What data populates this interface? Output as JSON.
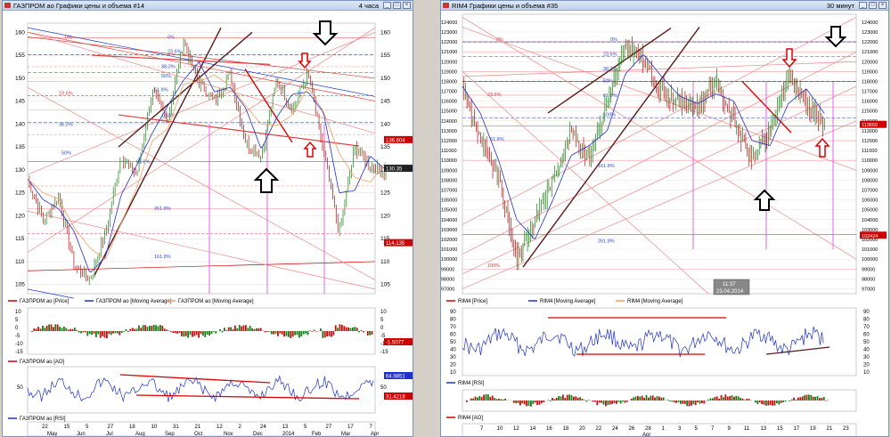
{
  "left": {
    "title": "ГАЗПРОМ ао Графики цены и объема #14",
    "period": "4 часа",
    "price_axis": [
      "160",
      "155",
      "150",
      "145",
      "140",
      "135",
      "130",
      "125",
      "120",
      "115",
      "110",
      "105"
    ],
    "fib": [
      "0%",
      "0%",
      "23.6%",
      "23.6%",
      "38.2%",
      "38.2%",
      "50%",
      "50%",
      "61.8%",
      "61.8%",
      "100%",
      "161.8%",
      "261.8%"
    ],
    "price_tags": [
      "136.604",
      "130.35",
      "114.135"
    ],
    "legend_price": [
      "ГАЗПРОМ ао [Price]",
      "ГАЗПРОМ ао [Moving Average]",
      "ГАЗПРОМ ао [Moving Average]"
    ],
    "ao_axis": [
      "10",
      "5",
      "0",
      "-5",
      "-10",
      "-15"
    ],
    "ao_tag": "-1.5077",
    "legend_ao": "ГАЗПРОМ ао [AO]",
    "rsi_axis": [
      "50"
    ],
    "rsi_tags": [
      "64.9851",
      "31.4218"
    ],
    "legend_rsi": "ГАЗПРОМ ао [RSI]",
    "time_days": [
      "22",
      "15",
      "5",
      "27",
      "18",
      "10",
      "31",
      "21",
      "12",
      "2",
      "24",
      "13",
      "5",
      "27",
      "17",
      "7"
    ],
    "time_months": [
      "May",
      "Jun",
      "Jul",
      "Aug",
      "Sep",
      "Oct",
      "Nov",
      "Dec",
      "2014",
      "Feb",
      "Mar",
      "Apr"
    ]
  },
  "right": {
    "title": "RIM4 Графики цены и объема #35",
    "period": "30 минут",
    "price_axis": [
      "124000",
      "123000",
      "122000",
      "121000",
      "120000",
      "119000",
      "118000",
      "117000",
      "116000",
      "115000",
      "114000",
      "113000",
      "112000",
      "111000",
      "110000",
      "109000",
      "108000",
      "107000",
      "106000",
      "105000",
      "104000",
      "103000",
      "102000",
      "101000",
      "100000",
      "99000",
      "98000",
      "97000"
    ],
    "fib": [
      "0%",
      "0%",
      "23.6%",
      "23.6%",
      "38.2%",
      "50%",
      "61.8%",
      "61.8%",
      "100%",
      "161.8%",
      "261.8%",
      "100%"
    ],
    "price_tags": [
      "113650",
      "102424"
    ],
    "cursor_time": "11:37",
    "cursor_date": "23.04.2014",
    "legend_price": [
      "RIM4 [Price]",
      "RIM4 [Moving Average]",
      "RIM4 [Moving Average]"
    ],
    "rsi_axis": [
      "90",
      "80",
      "70",
      "60",
      "50",
      "40",
      "30",
      "20",
      "10"
    ],
    "rsi_axis_right": [
      "90",
      "80",
      "70",
      "60",
      "50",
      "40",
      "30",
      "20",
      "10"
    ],
    "legend_rsi": "RIM4 [RSI]",
    "legend_ao": "RIM4 [AO]",
    "time_days": [
      "7",
      "10",
      "12",
      "14",
      "16",
      "18",
      "20",
      "22",
      "24",
      "26",
      "28",
      "1",
      "3",
      "5",
      "7",
      "9",
      "11",
      "13",
      "15",
      "17",
      "19",
      "21",
      "23"
    ],
    "time_month": "Apr"
  },
  "colors": {
    "price": "#000000",
    "ma_blue": "#2030d0",
    "ma_orange": "#f0a060",
    "fib": "#e04040",
    "up_arrow": "#d00000",
    "trend": "#5a1a1a"
  }
}
